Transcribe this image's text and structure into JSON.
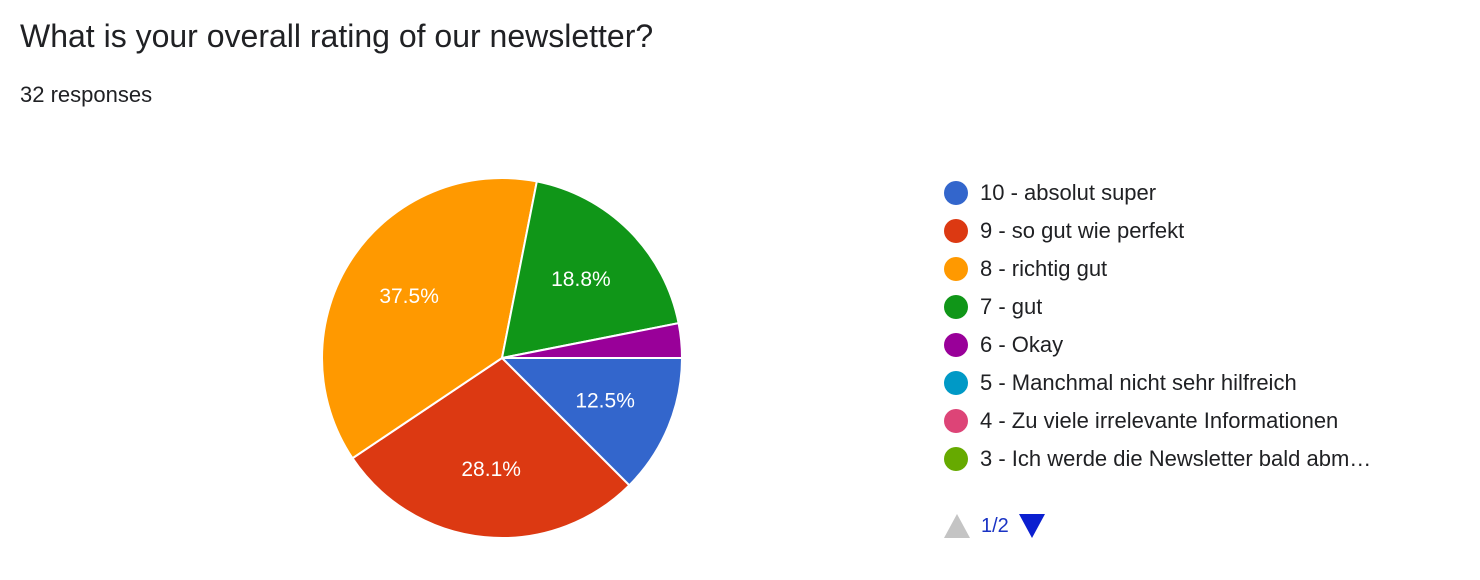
{
  "header": {
    "title": "What is your overall rating of our newsletter?",
    "responses": "32 responses"
  },
  "chart_data": {
    "type": "pie",
    "total_responses": 32,
    "slices": [
      {
        "label": "10 - absolut super",
        "value": 12.5,
        "value_label": "12.5%",
        "color": "#3366cc"
      },
      {
        "label": "9 - so gut wie perfekt",
        "value": 28.1,
        "value_label": "28.1%",
        "color": "#dc3912"
      },
      {
        "label": "8 - richtig gut",
        "value": 37.5,
        "value_label": "37.5%",
        "color": "#ff9900"
      },
      {
        "label": "7 - gut",
        "value": 18.8,
        "value_label": "18.8%",
        "color": "#109618"
      },
      {
        "label": "6 - Okay",
        "value": 3.1,
        "value_label": "",
        "color": "#990099"
      },
      {
        "label": "5 - Manchmal nicht sehr hilfreich",
        "value": 0,
        "value_label": "",
        "color": "#0099c6"
      },
      {
        "label": "4 - Zu viele irrelevante Informationen",
        "value": 0,
        "value_label": "",
        "color": "#dd4477"
      },
      {
        "label": "3 - Ich werde die Newsletter bald abm…",
        "value": 0,
        "value_label": "",
        "color": "#66aa00"
      }
    ],
    "legend_position": "right",
    "start_angle": "3 o'clock, clockwise"
  },
  "pager": {
    "text": "1/2",
    "prev_icon": "triangle-up-icon",
    "next_icon": "triangle-down-icon"
  }
}
